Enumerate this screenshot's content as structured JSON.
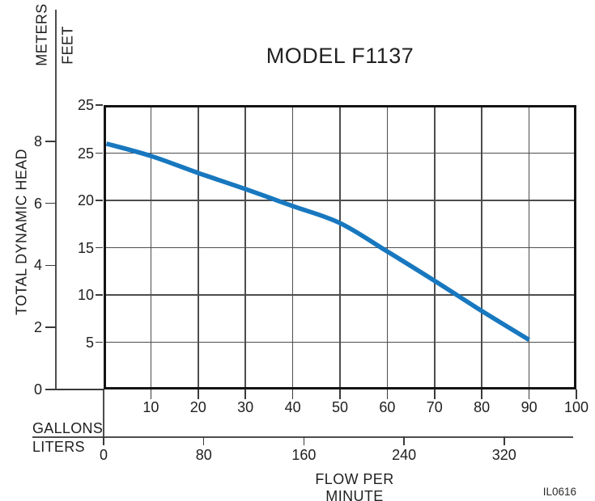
{
  "page": {
    "title": "MODEL F1137",
    "code": "IL0616"
  },
  "y_axis": {
    "unit_primary": "METERS",
    "unit_secondary": "FEET",
    "axis_title": "TOTAL DYNAMIC HEAD",
    "meters_ticks": [
      8,
      6,
      4,
      2,
      0
    ],
    "feet_ticks": [
      25,
      20,
      15,
      10,
      5
    ],
    "feet_top_frame_label": "25"
  },
  "x_axis": {
    "unit_primary": "GALLONS",
    "unit_secondary": "LITERS",
    "axis_title": "FLOW PER MINUTE",
    "gallons_ticks": [
      10,
      20,
      30,
      40,
      50,
      60,
      70,
      80,
      90,
      100
    ],
    "liters_ticks": [
      0,
      80,
      160,
      240,
      320
    ]
  },
  "chart_data": {
    "type": "line",
    "title": "MODEL F1137",
    "xlabel": "FLOW PER MINUTE",
    "ylabel": "TOTAL DYNAMIC HEAD",
    "x_units": [
      "GALLONS",
      "LITERS"
    ],
    "y_units": [
      "METERS",
      "FEET"
    ],
    "x_gallons": [
      0,
      10,
      20,
      30,
      40,
      50,
      60,
      70,
      80,
      90
    ],
    "y_feet": [
      26.0,
      24.7,
      22.9,
      21.2,
      19.4,
      17.6,
      14.6,
      11.5,
      8.3,
      5.25
    ],
    "xlim_gallons": [
      0,
      100
    ],
    "ylim_feet": [
      0,
      30
    ],
    "grid": true,
    "legend_position": "none",
    "series_color": "#1878bf"
  },
  "colors": {
    "curve": "#1878bf",
    "grid": "#4d4d4d",
    "frame": "#141414",
    "text": "#1f1f1f"
  }
}
